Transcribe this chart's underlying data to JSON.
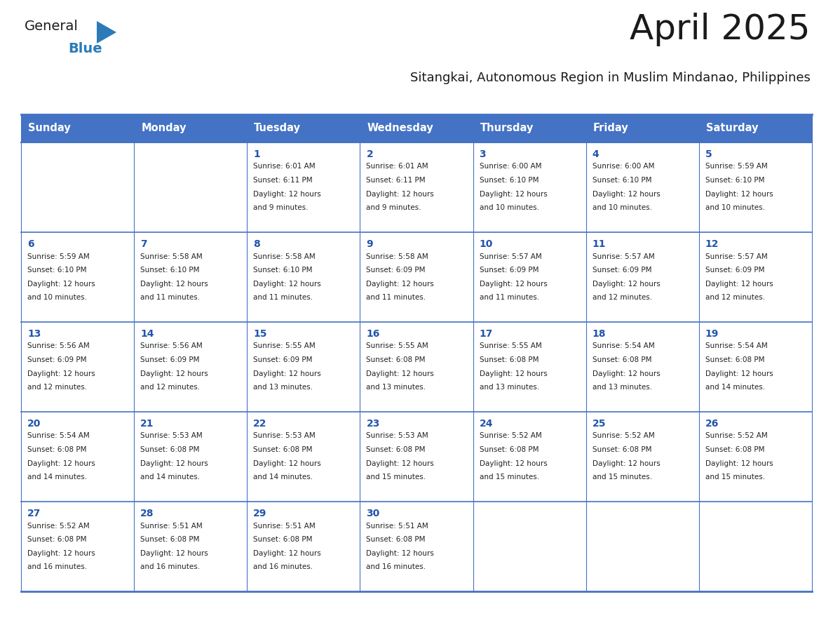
{
  "title": "April 2025",
  "subtitle": "Sitangkai, Autonomous Region in Muslim Mindanao, Philippines",
  "header_bg_color": "#4472C4",
  "header_text_color": "#FFFFFF",
  "grid_color": "#4472C4",
  "row_border_color": "#4472C4",
  "cell_bg_even": "#FFFFFF",
  "cell_bg_odd": "#EEF2FA",
  "title_color": "#1a1a1a",
  "subtitle_color": "#1a1a1a",
  "day_number_color": "#2255AA",
  "info_text_color": "#222222",
  "day_names": [
    "Sunday",
    "Monday",
    "Tuesday",
    "Wednesday",
    "Thursday",
    "Friday",
    "Saturday"
  ],
  "days": [
    {
      "day": 1,
      "col": 2,
      "row": 0,
      "sunrise": "6:01 AM",
      "sunset": "6:11 PM",
      "daylight_hours": 12,
      "daylight_minutes": 9
    },
    {
      "day": 2,
      "col": 3,
      "row": 0,
      "sunrise": "6:01 AM",
      "sunset": "6:11 PM",
      "daylight_hours": 12,
      "daylight_minutes": 9
    },
    {
      "day": 3,
      "col": 4,
      "row": 0,
      "sunrise": "6:00 AM",
      "sunset": "6:10 PM",
      "daylight_hours": 12,
      "daylight_minutes": 10
    },
    {
      "day": 4,
      "col": 5,
      "row": 0,
      "sunrise": "6:00 AM",
      "sunset": "6:10 PM",
      "daylight_hours": 12,
      "daylight_minutes": 10
    },
    {
      "day": 5,
      "col": 6,
      "row": 0,
      "sunrise": "5:59 AM",
      "sunset": "6:10 PM",
      "daylight_hours": 12,
      "daylight_minutes": 10
    },
    {
      "day": 6,
      "col": 0,
      "row": 1,
      "sunrise": "5:59 AM",
      "sunset": "6:10 PM",
      "daylight_hours": 12,
      "daylight_minutes": 10
    },
    {
      "day": 7,
      "col": 1,
      "row": 1,
      "sunrise": "5:58 AM",
      "sunset": "6:10 PM",
      "daylight_hours": 12,
      "daylight_minutes": 11
    },
    {
      "day": 8,
      "col": 2,
      "row": 1,
      "sunrise": "5:58 AM",
      "sunset": "6:10 PM",
      "daylight_hours": 12,
      "daylight_minutes": 11
    },
    {
      "day": 9,
      "col": 3,
      "row": 1,
      "sunrise": "5:58 AM",
      "sunset": "6:09 PM",
      "daylight_hours": 12,
      "daylight_minutes": 11
    },
    {
      "day": 10,
      "col": 4,
      "row": 1,
      "sunrise": "5:57 AM",
      "sunset": "6:09 PM",
      "daylight_hours": 12,
      "daylight_minutes": 11
    },
    {
      "day": 11,
      "col": 5,
      "row": 1,
      "sunrise": "5:57 AM",
      "sunset": "6:09 PM",
      "daylight_hours": 12,
      "daylight_minutes": 12
    },
    {
      "day": 12,
      "col": 6,
      "row": 1,
      "sunrise": "5:57 AM",
      "sunset": "6:09 PM",
      "daylight_hours": 12,
      "daylight_minutes": 12
    },
    {
      "day": 13,
      "col": 0,
      "row": 2,
      "sunrise": "5:56 AM",
      "sunset": "6:09 PM",
      "daylight_hours": 12,
      "daylight_minutes": 12
    },
    {
      "day": 14,
      "col": 1,
      "row": 2,
      "sunrise": "5:56 AM",
      "sunset": "6:09 PM",
      "daylight_hours": 12,
      "daylight_minutes": 12
    },
    {
      "day": 15,
      "col": 2,
      "row": 2,
      "sunrise": "5:55 AM",
      "sunset": "6:09 PM",
      "daylight_hours": 12,
      "daylight_minutes": 13
    },
    {
      "day": 16,
      "col": 3,
      "row": 2,
      "sunrise": "5:55 AM",
      "sunset": "6:08 PM",
      "daylight_hours": 12,
      "daylight_minutes": 13
    },
    {
      "day": 17,
      "col": 4,
      "row": 2,
      "sunrise": "5:55 AM",
      "sunset": "6:08 PM",
      "daylight_hours": 12,
      "daylight_minutes": 13
    },
    {
      "day": 18,
      "col": 5,
      "row": 2,
      "sunrise": "5:54 AM",
      "sunset": "6:08 PM",
      "daylight_hours": 12,
      "daylight_minutes": 13
    },
    {
      "day": 19,
      "col": 6,
      "row": 2,
      "sunrise": "5:54 AM",
      "sunset": "6:08 PM",
      "daylight_hours": 12,
      "daylight_minutes": 14
    },
    {
      "day": 20,
      "col": 0,
      "row": 3,
      "sunrise": "5:54 AM",
      "sunset": "6:08 PM",
      "daylight_hours": 12,
      "daylight_minutes": 14
    },
    {
      "day": 21,
      "col": 1,
      "row": 3,
      "sunrise": "5:53 AM",
      "sunset": "6:08 PM",
      "daylight_hours": 12,
      "daylight_minutes": 14
    },
    {
      "day": 22,
      "col": 2,
      "row": 3,
      "sunrise": "5:53 AM",
      "sunset": "6:08 PM",
      "daylight_hours": 12,
      "daylight_minutes": 14
    },
    {
      "day": 23,
      "col": 3,
      "row": 3,
      "sunrise": "5:53 AM",
      "sunset": "6:08 PM",
      "daylight_hours": 12,
      "daylight_minutes": 15
    },
    {
      "day": 24,
      "col": 4,
      "row": 3,
      "sunrise": "5:52 AM",
      "sunset": "6:08 PM",
      "daylight_hours": 12,
      "daylight_minutes": 15
    },
    {
      "day": 25,
      "col": 5,
      "row": 3,
      "sunrise": "5:52 AM",
      "sunset": "6:08 PM",
      "daylight_hours": 12,
      "daylight_minutes": 15
    },
    {
      "day": 26,
      "col": 6,
      "row": 3,
      "sunrise": "5:52 AM",
      "sunset": "6:08 PM",
      "daylight_hours": 12,
      "daylight_minutes": 15
    },
    {
      "day": 27,
      "col": 0,
      "row": 4,
      "sunrise": "5:52 AM",
      "sunset": "6:08 PM",
      "daylight_hours": 12,
      "daylight_minutes": 16
    },
    {
      "day": 28,
      "col": 1,
      "row": 4,
      "sunrise": "5:51 AM",
      "sunset": "6:08 PM",
      "daylight_hours": 12,
      "daylight_minutes": 16
    },
    {
      "day": 29,
      "col": 2,
      "row": 4,
      "sunrise": "5:51 AM",
      "sunset": "6:08 PM",
      "daylight_hours": 12,
      "daylight_minutes": 16
    },
    {
      "day": 30,
      "col": 3,
      "row": 4,
      "sunrise": "5:51 AM",
      "sunset": "6:08 PM",
      "daylight_hours": 12,
      "daylight_minutes": 16
    }
  ]
}
